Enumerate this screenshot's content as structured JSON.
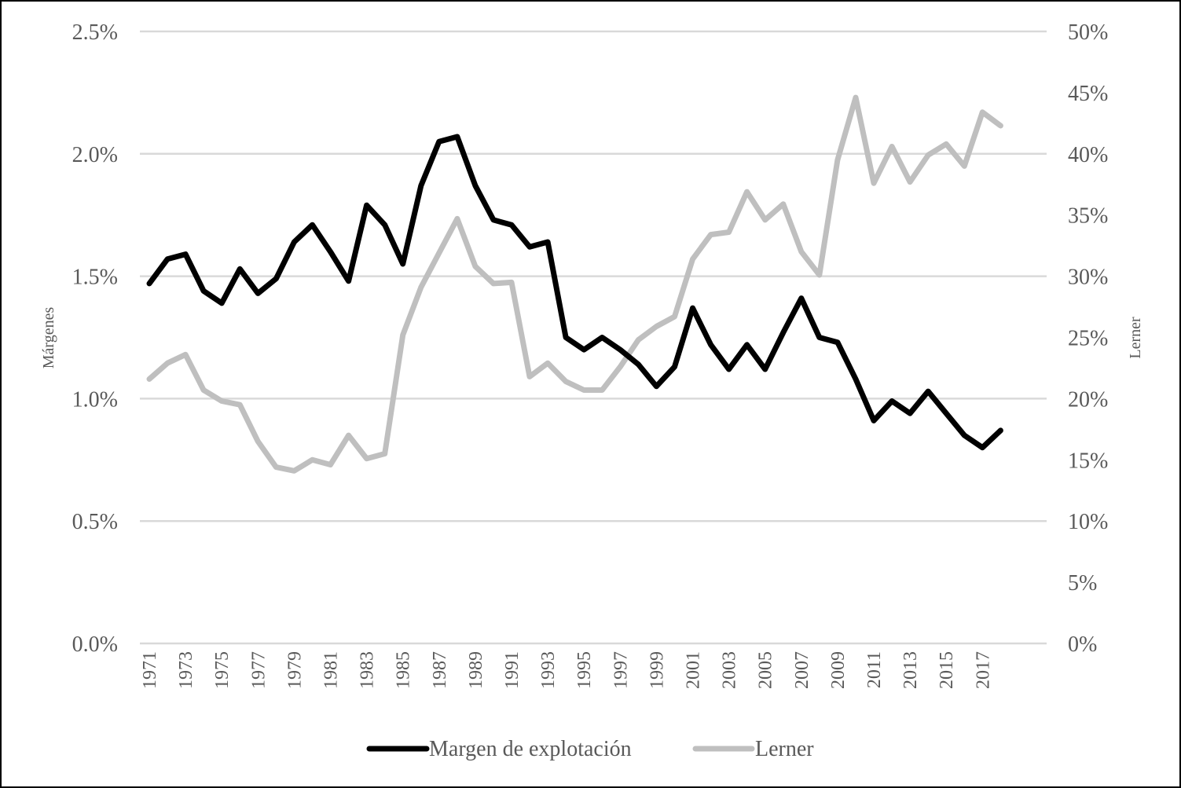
{
  "chart_data": {
    "type": "line",
    "title": "",
    "xlabel": "",
    "ylabel": "Márgenes",
    "ylabel_right": "Lerner",
    "ylim": [
      0,
      2.5
    ],
    "ylim_right": [
      0,
      50
    ],
    "grid": true,
    "legend_position": "bottom",
    "left_ticks": [
      "0.0%",
      "0.5%",
      "1.0%",
      "1.5%",
      "2.0%",
      "2.5%"
    ],
    "right_ticks": [
      "0%",
      "5%",
      "10%",
      "15%",
      "20%",
      "25%",
      "30%",
      "35%",
      "40%",
      "45%",
      "50%"
    ],
    "x_tick_labels": [
      "1971",
      "1973",
      "1975",
      "1977",
      "1979",
      "1981",
      "1983",
      "1985",
      "1987",
      "1989",
      "1991",
      "1993",
      "1995",
      "1997",
      "1999",
      "2001",
      "2003",
      "2005",
      "2007",
      "2009",
      "2011",
      "2013",
      "2015",
      "2017"
    ],
    "x": [
      1971,
      1972,
      1973,
      1974,
      1975,
      1976,
      1977,
      1978,
      1979,
      1980,
      1981,
      1982,
      1983,
      1984,
      1985,
      1986,
      1987,
      1988,
      1989,
      1990,
      1991,
      1992,
      1993,
      1994,
      1995,
      1996,
      1997,
      1998,
      1999,
      2000,
      2001,
      2002,
      2003,
      2004,
      2005,
      2006,
      2007,
      2008,
      2009,
      2010,
      2011,
      2012,
      2013,
      2014,
      2015,
      2016,
      2017,
      2018
    ],
    "series": [
      {
        "name": "Margen de explotación",
        "axis": "left",
        "color": "#000000",
        "values": [
          1.47,
          1.57,
          1.59,
          1.44,
          1.39,
          1.53,
          1.43,
          1.49,
          1.64,
          1.71,
          1.6,
          1.48,
          1.79,
          1.71,
          1.55,
          1.87,
          2.05,
          2.07,
          1.87,
          1.73,
          1.71,
          1.62,
          1.64,
          1.25,
          1.2,
          1.25,
          1.2,
          1.14,
          1.05,
          1.13,
          1.37,
          1.22,
          1.12,
          1.22,
          1.12,
          1.27,
          1.41,
          1.25,
          1.23,
          1.08,
          0.91,
          0.99,
          0.94,
          1.03,
          0.94,
          0.85,
          0.8,
          0.87
        ]
      },
      {
        "name": "Lerner",
        "axis": "right",
        "color": "#bfbfbf",
        "values": [
          21.6,
          22.9,
          23.6,
          20.7,
          19.8,
          19.5,
          16.5,
          14.4,
          14.1,
          15.0,
          14.6,
          17.0,
          15.1,
          15.5,
          25.2,
          29.1,
          31.9,
          34.7,
          30.8,
          29.4,
          29.5,
          21.8,
          22.9,
          21.4,
          20.7,
          20.7,
          22.6,
          24.8,
          25.9,
          26.7,
          31.4,
          33.4,
          33.6,
          36.9,
          34.6,
          35.9,
          32.0,
          30.1,
          39.5,
          44.6,
          37.6,
          40.6,
          37.7,
          39.9,
          40.8,
          39.0,
          43.4,
          42.3
        ]
      }
    ]
  }
}
